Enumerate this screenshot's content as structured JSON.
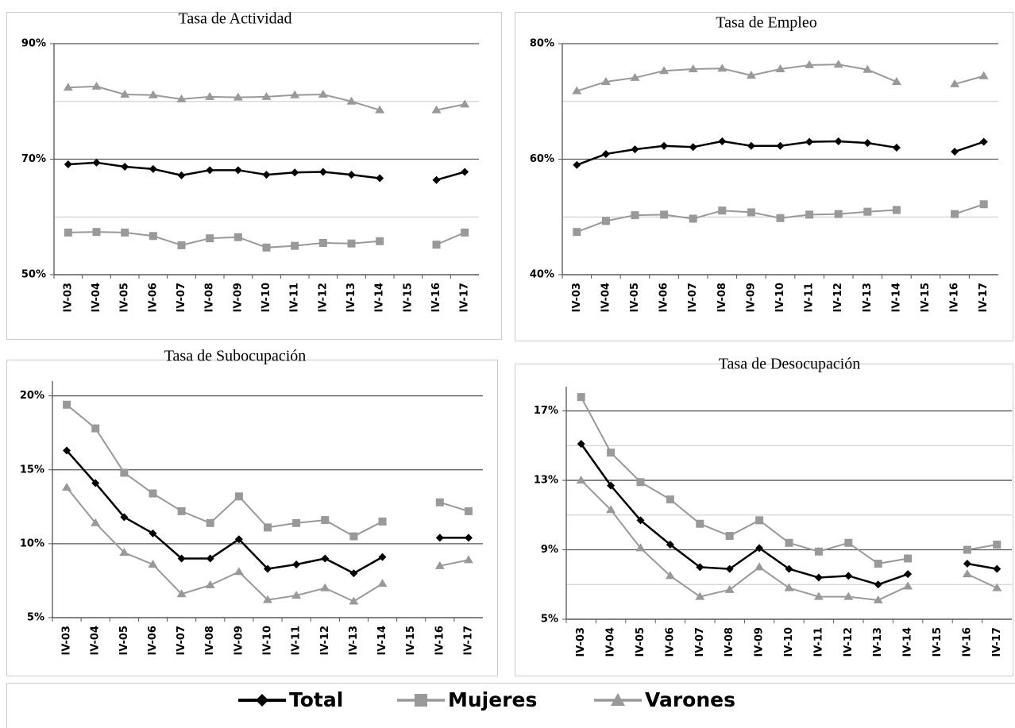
{
  "chart_data": [
    {
      "type": "line",
      "title": "Tasa de Actividad",
      "categories": [
        "IV-03",
        "IV-04",
        "IV-05",
        "IV-06",
        "IV-07",
        "IV-08",
        "IV-09",
        "IV-10",
        "IV-11",
        "IV-12",
        "IV-13",
        "IV-14",
        "IV-15",
        "IV-16",
        "IV-17"
      ],
      "series": [
        {
          "name": "Total",
          "color": "#000000",
          "marker": "diamond",
          "linewidth": 2.5,
          "values": [
            69.1,
            69.4,
            68.7,
            68.3,
            67.2,
            68.1,
            68.1,
            67.3,
            67.7,
            67.8,
            67.3,
            66.7,
            null,
            66.4,
            67.8
          ]
        },
        {
          "name": "Mujeres",
          "color": "#999999",
          "marker": "square",
          "linewidth": 2,
          "values": [
            57.3,
            57.4,
            57.3,
            56.7,
            55.1,
            56.3,
            56.5,
            54.7,
            55.0,
            55.5,
            55.4,
            55.8,
            null,
            55.2,
            57.3
          ]
        },
        {
          "name": "Varones",
          "color": "#999999",
          "marker": "triangle",
          "linewidth": 2,
          "values": [
            82.4,
            82.6,
            81.2,
            81.1,
            80.4,
            80.8,
            80.7,
            80.8,
            81.1,
            81.2,
            80.0,
            78.5,
            null,
            78.5,
            79.5
          ]
        }
      ],
      "ylim": [
        50,
        90
      ],
      "yticks": [
        {
          "value": 50,
          "label": "50%"
        },
        {
          "value": 70,
          "label": "70%"
        },
        {
          "value": 90,
          "label": "90%"
        }
      ],
      "yminorgrid": [
        60,
        80
      ]
    },
    {
      "type": "line",
      "title": "Tasa de Empleo",
      "categories": [
        "IV-03",
        "IV-04",
        "IV-05",
        "IV-06",
        "IV-07",
        "IV-08",
        "IV-09",
        "IV-10",
        "IV-11",
        "IV-12",
        "IV-13",
        "IV-14",
        "IV-15",
        "IV-16",
        "IV-17"
      ],
      "series": [
        {
          "color": "#000000",
          "marker": "diamond",
          "linewidth": 2.5,
          "values": [
            59.0,
            60.9,
            61.7,
            62.3,
            62.1,
            63.1,
            62.3,
            62.3,
            63.0,
            63.1,
            62.8,
            62.0,
            null,
            61.3,
            63.0
          ]
        },
        {
          "color": "#999999",
          "marker": "square",
          "linewidth": 2,
          "values": [
            47.4,
            49.3,
            50.3,
            50.4,
            49.7,
            51.1,
            50.8,
            49.8,
            50.4,
            50.5,
            50.9,
            51.2,
            null,
            50.5,
            52.2
          ]
        },
        {
          "color": "#999999",
          "marker": "triangle",
          "linewidth": 2,
          "values": [
            71.8,
            73.4,
            74.1,
            75.3,
            75.6,
            75.7,
            74.5,
            75.6,
            76.3,
            76.4,
            75.5,
            73.4,
            null,
            73.0,
            74.4
          ]
        }
      ],
      "ylim": [
        40,
        80
      ],
      "yticks": [
        {
          "value": 40,
          "label": "40%"
        },
        {
          "value": 60,
          "label": "60%"
        },
        {
          "value": 80,
          "label": "80%"
        }
      ],
      "yminorgrid": [
        50,
        70
      ]
    },
    {
      "type": "line",
      "title": "Tasa de Subocupación",
      "categories": [
        "IV-03",
        "IV-04",
        "IV-05",
        "IV-06",
        "IV-07",
        "IV-08",
        "IV-09",
        "IV-10",
        "IV-11",
        "IV-12",
        "IV-13",
        "IV-14",
        "IV-15",
        "IV-16",
        "IV-17"
      ],
      "series": [
        {
          "color": "#000000",
          "marker": "diamond",
          "linewidth": 2.5,
          "values": [
            16.3,
            14.1,
            11.8,
            10.7,
            9.0,
            9.0,
            10.3,
            8.3,
            8.6,
            9.0,
            8.0,
            9.1,
            null,
            10.4,
            10.4
          ]
        },
        {
          "color": "#999999",
          "marker": "square",
          "linewidth": 2,
          "values": [
            19.4,
            17.8,
            14.8,
            13.4,
            12.2,
            11.4,
            13.2,
            11.1,
            11.4,
            11.6,
            10.5,
            11.5,
            null,
            12.8,
            12.2
          ]
        },
        {
          "color": "#999999",
          "marker": "triangle",
          "linewidth": 2,
          "values": [
            13.8,
            11.4,
            9.4,
            8.6,
            6.6,
            7.2,
            8.1,
            6.2,
            6.5,
            7.0,
            6.1,
            7.3,
            null,
            8.5,
            8.9
          ]
        }
      ],
      "ylim": [
        5,
        21
      ],
      "yticks": [
        {
          "value": 5,
          "label": "5%"
        },
        {
          "value": 10,
          "label": "10%"
        },
        {
          "value": 15,
          "label": "15%"
        },
        {
          "value": 20,
          "label": "20%"
        }
      ],
      "yminorgrid": []
    },
    {
      "type": "line",
      "title": "Tasa de Desocupación",
      "categories": [
        "IV-03",
        "IV-04",
        "IV-05",
        "IV-06",
        "IV-07",
        "IV-08",
        "IV-09",
        "IV-10",
        "IV-11",
        "IV-12",
        "IV-13",
        "IV-14",
        "IV-15",
        "IV-16",
        "IV-17"
      ],
      "series": [
        {
          "color": "#000000",
          "marker": "diamond",
          "linewidth": 2.5,
          "values": [
            15.1,
            12.7,
            10.7,
            9.3,
            8.0,
            7.9,
            9.1,
            7.9,
            7.4,
            7.5,
            7.0,
            7.6,
            null,
            8.2,
            7.9
          ]
        },
        {
          "color": "#999999",
          "marker": "square",
          "linewidth": 2,
          "values": [
            17.8,
            14.6,
            12.9,
            11.9,
            10.5,
            9.8,
            10.7,
            9.4,
            8.9,
            9.4,
            8.2,
            8.5,
            null,
            9.0,
            9.3
          ]
        },
        {
          "color": "#999999",
          "marker": "triangle",
          "linewidth": 2,
          "values": [
            13.0,
            11.3,
            9.1,
            7.5,
            6.3,
            6.7,
            8.0,
            6.8,
            6.3,
            6.3,
            6.1,
            6.9,
            null,
            7.6,
            6.8
          ]
        }
      ],
      "ylim": [
        5,
        18.4
      ],
      "yticks": [
        {
          "value": 5,
          "label": "5%"
        },
        {
          "value": 9,
          "label": "9%"
        },
        {
          "value": 13,
          "label": "13%"
        },
        {
          "value": 17,
          "label": "17%"
        }
      ],
      "yminorgrid": [
        7,
        11,
        15
      ]
    }
  ]
}
